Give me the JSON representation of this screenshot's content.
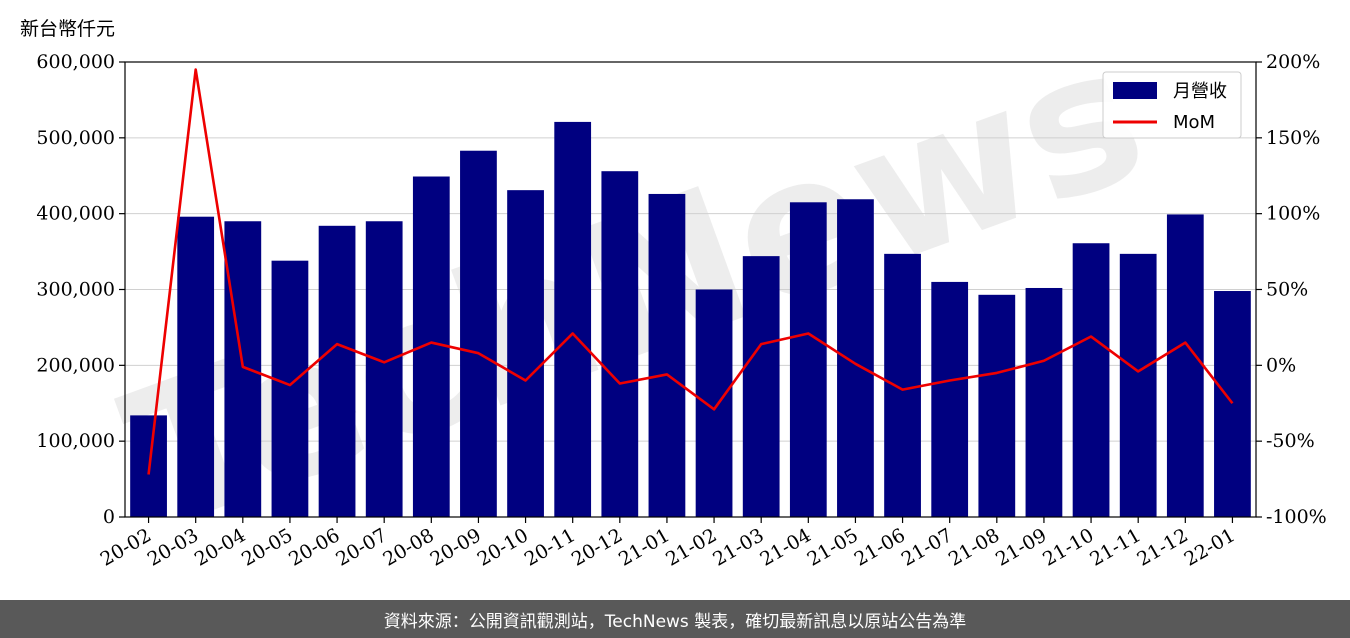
{
  "unit_label": "新台幣仟元",
  "footer_text": "資料來源：公開資訊觀測站，TechNews 製表，確切最新訊息以原站公告為準",
  "watermark_text": "TechNews",
  "chart_data": {
    "type": "bar",
    "categories": [
      "20-02",
      "20-03",
      "20-04",
      "20-05",
      "20-06",
      "20-07",
      "20-08",
      "20-09",
      "20-10",
      "20-11",
      "20-12",
      "21-01",
      "21-02",
      "21-03",
      "21-04",
      "21-05",
      "21-06",
      "21-07",
      "21-08",
      "21-09",
      "21-10",
      "21-11",
      "21-12",
      "22-01"
    ],
    "series": [
      {
        "name": "月營收",
        "axis": "left",
        "mark": "bar",
        "color": "#000080",
        "values": [
          134000,
          396000,
          390000,
          338000,
          384000,
          390000,
          449000,
          483000,
          431000,
          521000,
          456000,
          426000,
          300000,
          344000,
          415000,
          419000,
          347000,
          310000,
          293000,
          302000,
          361000,
          347000,
          399000,
          298000
        ]
      },
      {
        "name": "MoM",
        "axis": "right",
        "mark": "line",
        "color": "#ee0000",
        "values": [
          -72,
          195,
          -1,
          -13,
          14,
          2,
          15,
          8,
          -10,
          21,
          -12,
          -6,
          -29,
          14,
          21,
          1,
          -16,
          -10,
          -5,
          3,
          19,
          -4,
          15,
          -25
        ]
      }
    ],
    "y_left": {
      "ylim": [
        0,
        600000
      ],
      "ticks": [
        0,
        100000,
        200000,
        300000,
        400000,
        500000,
        600000
      ],
      "tick_labels": [
        "0",
        "100,000",
        "200,000",
        "300,000",
        "400,000",
        "500,000",
        "600,000"
      ]
    },
    "y_right": {
      "ylim": [
        -100,
        200
      ],
      "ticks": [
        -100,
        -50,
        0,
        50,
        100,
        150,
        200
      ],
      "tick_labels": [
        "-100%",
        "-50%",
        "0%",
        "50%",
        "100%",
        "150%",
        "200%"
      ]
    },
    "grid": true,
    "legend_position": "top-right"
  }
}
